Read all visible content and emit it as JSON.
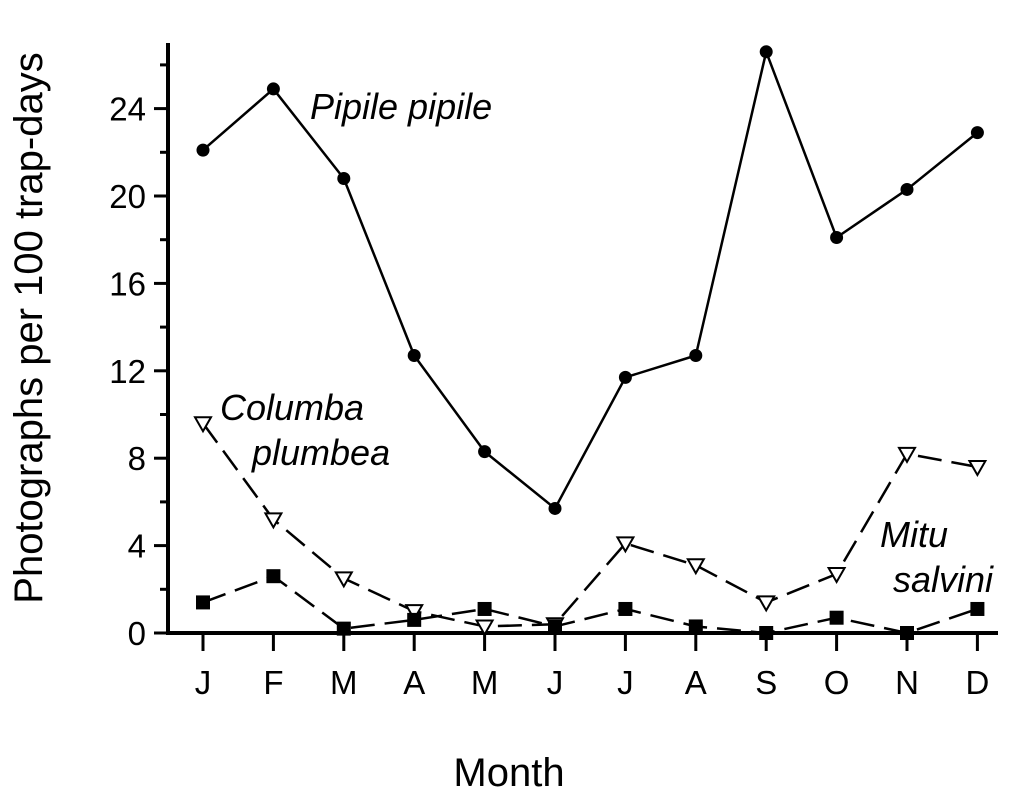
{
  "chart_data": {
    "type": "line",
    "title": "",
    "xlabel": "Month",
    "ylabel": "Photographs per 100 trap-days",
    "categories": [
      "J",
      "F",
      "M",
      "A",
      "M",
      "J",
      "J",
      "A",
      "S",
      "O",
      "N",
      "D"
    ],
    "ylim": [
      0,
      27.5
    ],
    "yticks": [
      0,
      4,
      8,
      12,
      16,
      20,
      24
    ],
    "grid": false,
    "legend": "none",
    "series": [
      {
        "name": "Pipile pipile",
        "style": "solid",
        "marker": "filled-circle",
        "values": [
          22.1,
          24.9,
          20.8,
          12.7,
          8.3,
          5.7,
          11.7,
          12.7,
          26.6,
          18.1,
          20.3,
          22.9
        ]
      },
      {
        "name": "Columba plumbea",
        "style": "dashed",
        "marker": "open-triangle-down",
        "values": [
          9.6,
          5.2,
          2.5,
          1.0,
          0.3,
          0.4,
          4.1,
          3.1,
          1.4,
          2.7,
          8.2,
          7.6
        ]
      },
      {
        "name": "Mitu salvini",
        "style": "dashed",
        "marker": "filled-square",
        "values": [
          1.4,
          2.6,
          0.2,
          0.6,
          1.1,
          0.3,
          1.1,
          0.3,
          0.0,
          0.7,
          0.0,
          1.1
        ]
      }
    ],
    "annotations": [
      {
        "series": "Pipile pipile",
        "lines": [
          "Pipile pipile"
        ]
      },
      {
        "series": "Columba plumbea",
        "lines": [
          "Columba",
          "plumbea"
        ]
      },
      {
        "series": "Mitu salvini",
        "lines": [
          "Mitu",
          "salvini"
        ]
      }
    ]
  }
}
